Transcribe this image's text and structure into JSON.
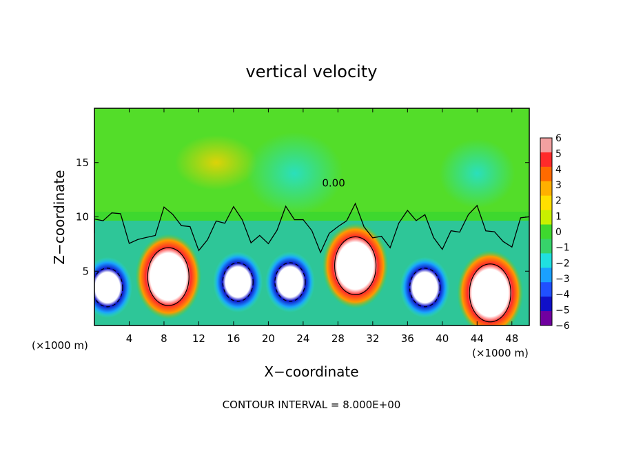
{
  "chart_data": {
    "type": "heatmap",
    "title": "vertical velocity",
    "xlabel": "X−coordinate",
    "ylabel": "Z−coordinate",
    "x_unit": "(×1000 m)",
    "y_unit": "(×1000 m)",
    "xlim": [
      0,
      50
    ],
    "ylim": [
      0,
      20
    ],
    "x_ticks": [
      4,
      8,
      12,
      16,
      20,
      24,
      28,
      32,
      36,
      40,
      44,
      48
    ],
    "y_ticks": [
      5,
      10,
      15
    ],
    "colorbar": {
      "ticks": [
        6,
        5,
        4,
        3,
        2,
        1,
        0,
        -1,
        -2,
        -3,
        -4,
        -5,
        -6
      ],
      "colors": [
        "#f2a0a0",
        "#ff2a2a",
        "#ff6a00",
        "#ffb000",
        "#ffe000",
        "#c8f000",
        "#3ed82e",
        "#37d36a",
        "#20e0e0",
        "#1aa0ff",
        "#2050ff",
        "#1010c8",
        "#7000a0"
      ]
    },
    "contour_label": "0.00",
    "contour_interval_text": "CONTOUR INTERVAL = 8.000E+00",
    "updraft_cores": [
      {
        "x": 1.5,
        "z": 3.5,
        "w": -8
      },
      {
        "x": 8.5,
        "z": 4.5,
        "w": 12
      },
      {
        "x": 16.5,
        "z": 4.0,
        "w": -8
      },
      {
        "x": 22.5,
        "z": 4.0,
        "w": -8
      },
      {
        "x": 30.0,
        "z": 5.5,
        "w": 12
      },
      {
        "x": 38.0,
        "z": 3.5,
        "w": -8
      },
      {
        "x": 45.5,
        "z": 3.0,
        "w": 12
      }
    ]
  },
  "colors": {
    "background": "#ffffff",
    "frame": "#000000"
  }
}
